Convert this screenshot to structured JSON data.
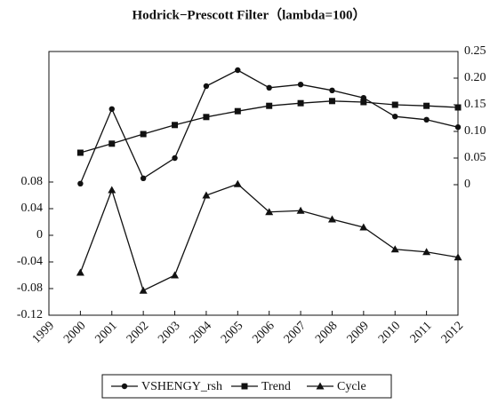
{
  "chart_data": {
    "type": "line",
    "title": "Hodrick−Prescott Filter（lambda=100）",
    "x": [
      2000,
      2001,
      2002,
      2003,
      2004,
      2005,
      2006,
      2007,
      2008,
      2009,
      2010,
      2011,
      2012
    ],
    "xlim": [
      1999,
      2012
    ],
    "xticks": [
      1999,
      2000,
      2001,
      2002,
      2003,
      2004,
      2005,
      2006,
      2007,
      2008,
      2009,
      2010,
      2011,
      2012
    ],
    "ylim": [
      -0.12,
      0.276
    ],
    "yticks": [
      -0.12,
      -0.08,
      -0.04,
      0,
      0.04,
      0.08
    ],
    "y2lim": [
      -0.245,
      0.25
    ],
    "y2ticks": [
      0,
      0.05,
      {
        "value": 0.1,
        "label": "0.10"
      },
      0.15,
      {
        "value": 0.2,
        "label": "0.20"
      },
      0.25
    ],
    "legend": "bottom",
    "series": [
      {
        "name": "VSHENGY_rsh",
        "color": "#111111",
        "marker": "circle",
        "axis": "y2",
        "values": [
          0.002,
          0.142,
          0.012,
          0.05,
          0.185,
          0.215,
          0.182,
          0.188,
          0.177,
          0.163,
          0.128,
          0.122,
          0.108
        ]
      },
      {
        "name": "Trend",
        "color": "#111111",
        "marker": "square",
        "axis": "y2",
        "values": [
          0.06,
          0.077,
          0.095,
          0.112,
          0.127,
          0.138,
          0.148,
          0.153,
          0.157,
          0.155,
          0.15,
          0.148,
          0.145
        ]
      },
      {
        "name": "Cycle",
        "color": "#111111",
        "marker": "triangle",
        "axis": "y",
        "values": [
          -0.056,
          0.068,
          -0.083,
          -0.06,
          0.06,
          0.077,
          0.035,
          0.037,
          0.024,
          0.012,
          -0.021,
          -0.025,
          -0.033
        ]
      }
    ]
  }
}
